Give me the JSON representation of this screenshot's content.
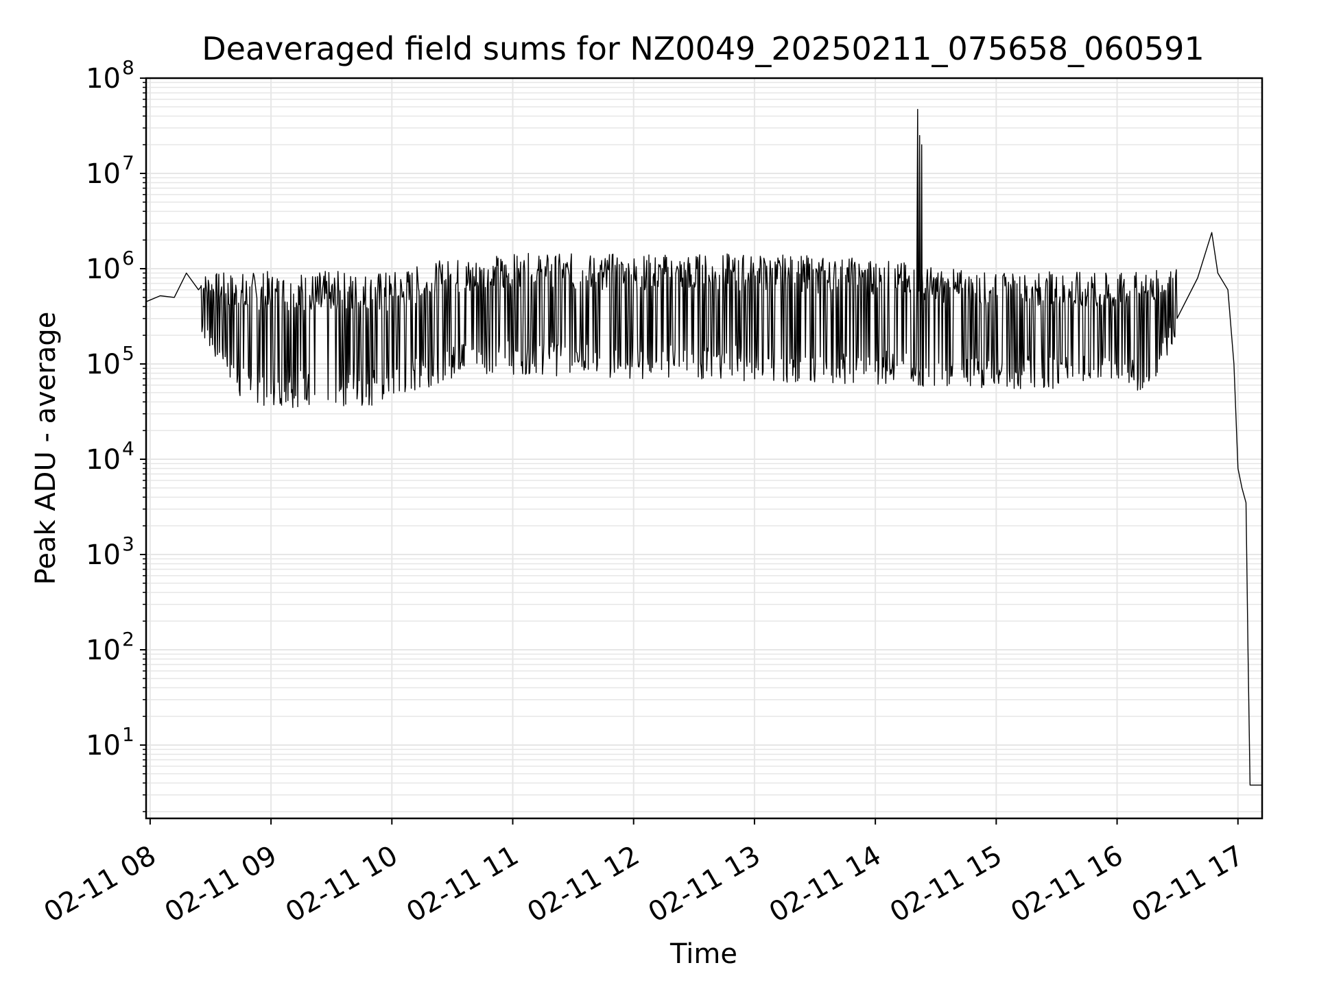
{
  "chart_data": {
    "type": "line",
    "title": "Deaveraged field sums for NZ0049_20250211_075658_060591",
    "xlabel": "Time",
    "ylabel": "Peak ADU - average",
    "y_scale": "log",
    "ylim": [
      1.7,
      100000000
    ],
    "xlim": [
      "02-11 07:58",
      "02-11 17:12"
    ],
    "grid": true,
    "line_color": "#000000",
    "grid_color": "#e6e6e6",
    "x_ticks": [
      {
        "label": "02-11 08",
        "value": "02-11 08:00"
      },
      {
        "label": "02-11 09",
        "value": "02-11 09:00"
      },
      {
        "label": "02-11 10",
        "value": "02-11 10:00"
      },
      {
        "label": "02-11 11",
        "value": "02-11 11:00"
      },
      {
        "label": "02-11 12",
        "value": "02-11 12:00"
      },
      {
        "label": "02-11 13",
        "value": "02-11 13:00"
      },
      {
        "label": "02-11 14",
        "value": "02-11 14:00"
      },
      {
        "label": "02-11 15",
        "value": "02-11 15:00"
      },
      {
        "label": "02-11 16",
        "value": "02-11 16:00"
      },
      {
        "label": "02-11 17",
        "value": "02-11 17:00"
      }
    ],
    "y_ticks": [
      {
        "base": "10",
        "exp": "1",
        "value": 10
      },
      {
        "base": "10",
        "exp": "2",
        "value": 100
      },
      {
        "base": "10",
        "exp": "3",
        "value": 1000
      },
      {
        "base": "10",
        "exp": "4",
        "value": 10000
      },
      {
        "base": "10",
        "exp": "5",
        "value": 100000
      },
      {
        "base": "10",
        "exp": "6",
        "value": 1000000
      },
      {
        "base": "10",
        "exp": "7",
        "value": 10000000
      },
      {
        "base": "10",
        "exp": "8",
        "value": 100000000
      }
    ],
    "series": [
      {
        "points": [
          [
            "02-11 07:58",
            450000
          ],
          [
            "02-11 08:05",
            520000
          ],
          [
            "02-11 08:12",
            500000
          ],
          [
            "02-11 08:18",
            900000
          ],
          [
            "02-11 08:24",
            600000
          ],
          [
            "02-11 08:30",
            300000
          ],
          [
            "02-11 08:36",
            100000
          ],
          [
            "02-11 08:42",
            40000
          ],
          [
            "02-11 08:48",
            36000
          ],
          [
            "02-11 08:54",
            36000
          ],
          [
            "02-11 09:00",
            34000
          ],
          [
            "02-11 09:15",
            33000
          ],
          [
            "02-11 09:30",
            35000
          ],
          [
            "02-11 09:45",
            34000
          ],
          [
            "02-11 10:00",
            34000
          ],
          [
            "02-11 10:15",
            45000
          ],
          [
            "02-11 10:30",
            70000
          ],
          [
            "02-11 10:45",
            80000
          ],
          [
            "02-11 11:00",
            80000
          ],
          [
            "02-11 11:30",
            75000
          ],
          [
            "02-11 12:00",
            70000
          ],
          [
            "02-11 12:30",
            65000
          ],
          [
            "02-11 13:00",
            65000
          ],
          [
            "02-11 13:30",
            65000
          ],
          [
            "02-11 14:00",
            60000
          ],
          [
            "02-11 14:20",
            60000
          ],
          [
            "02-11 14:21",
            47000000
          ],
          [
            "02-11 14:22",
            25000000
          ],
          [
            "02-11 14:23",
            20000000
          ],
          [
            "02-11 14:24",
            60000
          ],
          [
            "02-11 14:40",
            55000
          ],
          [
            "02-11 15:00",
            55000
          ],
          [
            "02-11 15:30",
            55000
          ],
          [
            "02-11 16:00",
            55000
          ],
          [
            "02-11 16:10",
            48000
          ],
          [
            "02-11 16:20",
            60000
          ],
          [
            "02-11 16:30",
            250000
          ],
          [
            "02-11 16:40",
            800000
          ],
          [
            "02-11 16:47",
            2400000
          ],
          [
            "02-11 16:50",
            900000
          ],
          [
            "02-11 16:55",
            600000
          ],
          [
            "02-11 16:58",
            100000
          ],
          [
            "02-11 17:00",
            8000
          ],
          [
            "02-11 17:02",
            5000
          ],
          [
            "02-11 17:04",
            3500
          ],
          [
            "02-11 17:05",
            100
          ],
          [
            "02-11 17:06",
            3.8
          ],
          [
            "02-11 17:12",
            3.8
          ]
        ],
        "envelope_high": [
          [
            "02-11 08:25",
            900000
          ],
          [
            "02-11 09:00",
            950000
          ],
          [
            "02-11 10:00",
            950000
          ],
          [
            "02-11 10:30",
            1300000
          ],
          [
            "02-11 11:00",
            1450000
          ],
          [
            "02-11 12:00",
            1450000
          ],
          [
            "02-11 13:00",
            1450000
          ],
          [
            "02-11 14:00",
            1300000
          ],
          [
            "02-11 14:30",
            1050000
          ],
          [
            "02-11 15:00",
            900000
          ],
          [
            "02-11 15:30",
            950000
          ],
          [
            "02-11 16:00",
            900000
          ],
          [
            "02-11 16:30",
            1000000
          ]
        ],
        "envelope_low": [
          [
            "02-11 08:25",
            200000
          ],
          [
            "02-11 08:45",
            40000
          ],
          [
            "02-11 09:00",
            35000
          ],
          [
            "02-11 10:00",
            34000
          ],
          [
            "02-11 10:20",
            60000
          ],
          [
            "02-11 10:40",
            80000
          ],
          [
            "02-11 12:00",
            70000
          ],
          [
            "02-11 13:00",
            65000
          ],
          [
            "02-11 14:00",
            60000
          ],
          [
            "02-11 15:00",
            55000
          ],
          [
            "02-11 16:00",
            55000
          ],
          [
            "02-11 16:15",
            48000
          ],
          [
            "02-11 16:30",
            200000
          ]
        ]
      }
    ]
  }
}
